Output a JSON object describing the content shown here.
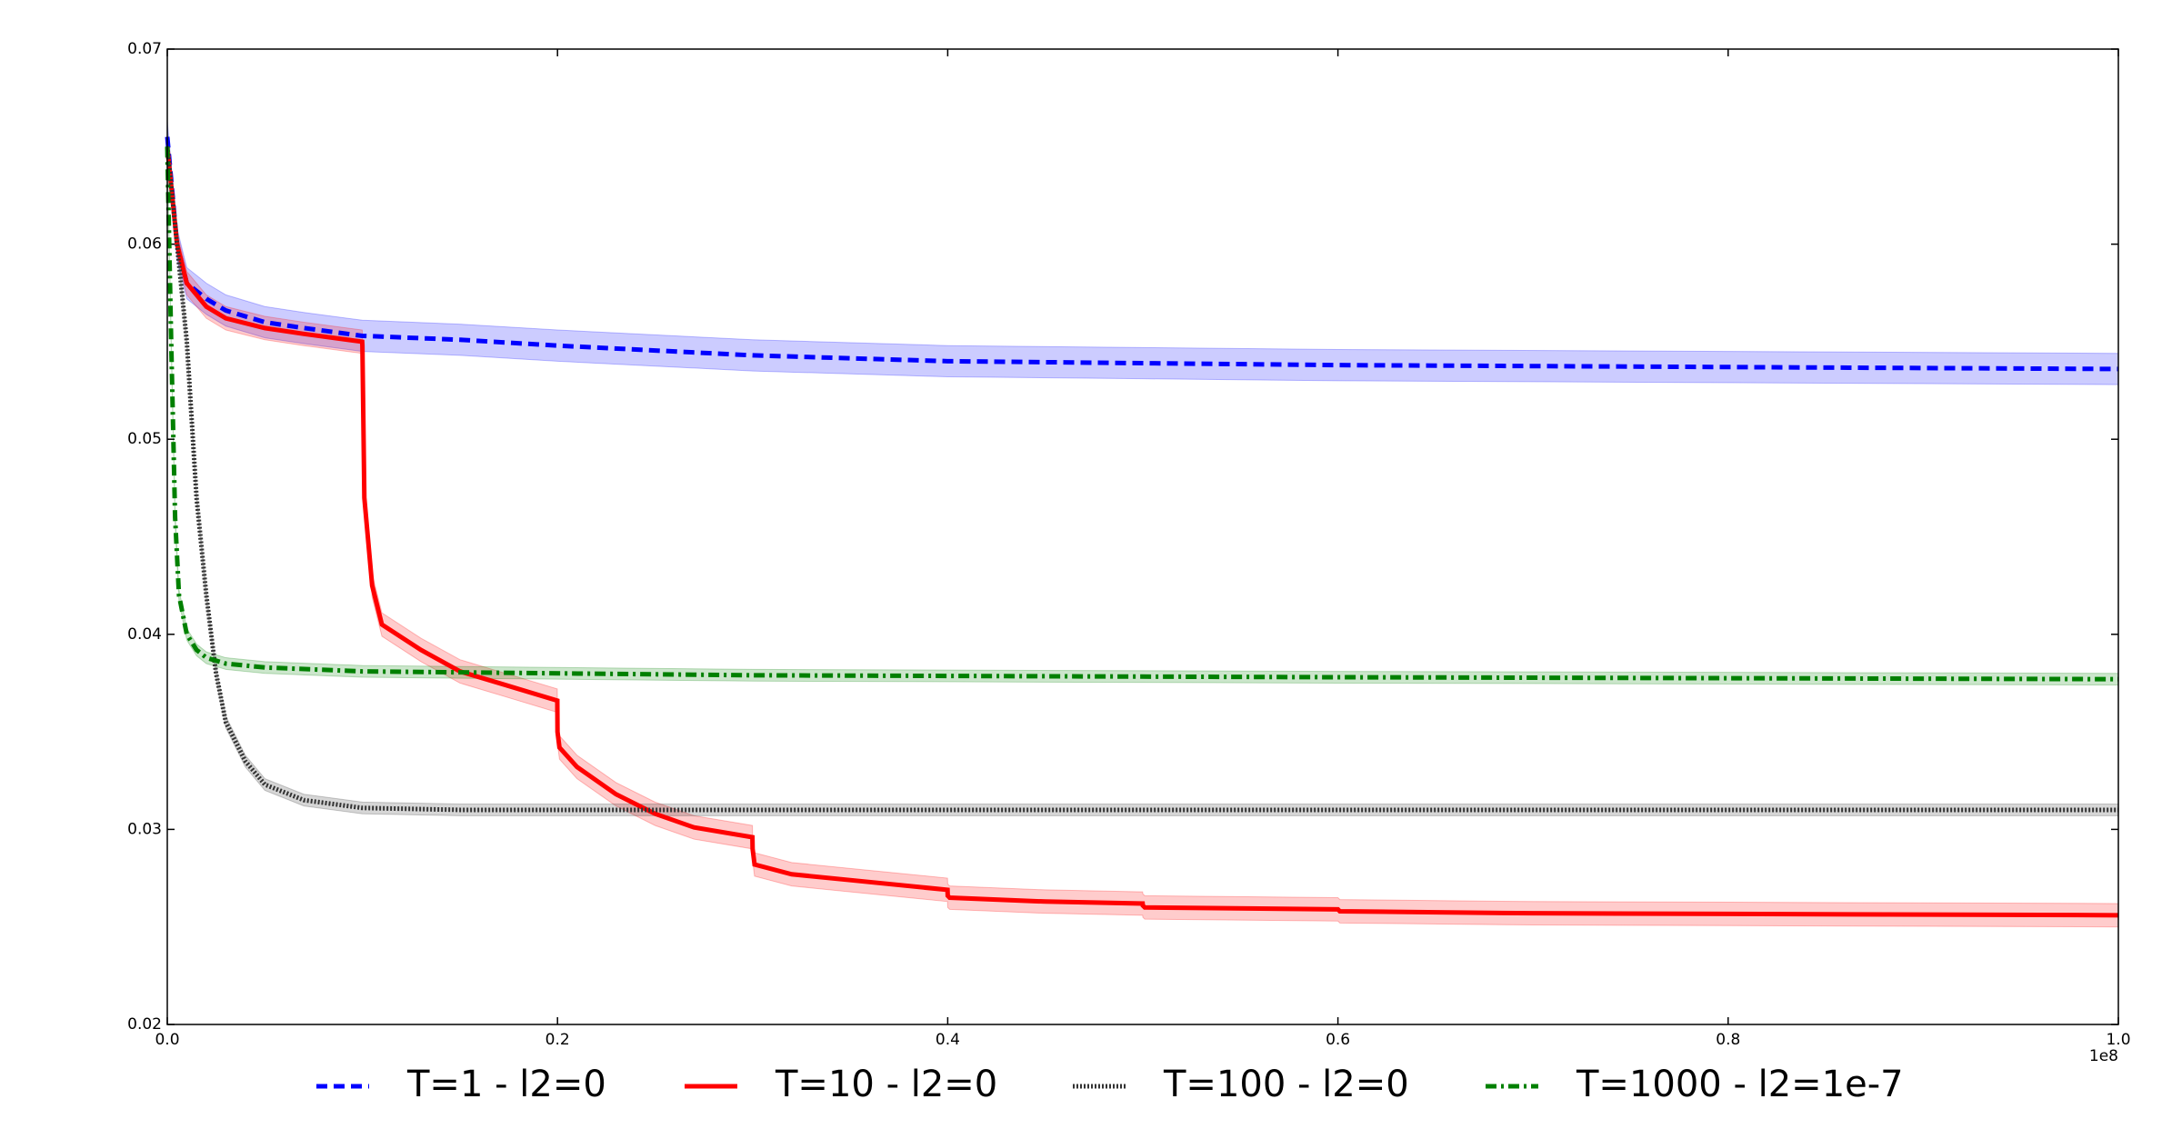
{
  "chart_data": {
    "type": "line",
    "x_offset_label": "1e8",
    "xlim": [
      0,
      1.0
    ],
    "xticks": [
      {
        "value": 0,
        "label": "0.0"
      },
      0.2,
      0.4,
      0.6,
      0.8,
      {
        "value": 1,
        "label": "1.0"
      }
    ],
    "ylim": [
      0.02,
      0.07
    ],
    "yticks": [
      0.02,
      0.03,
      0.04,
      0.05,
      0.06,
      0.07
    ],
    "grid": false,
    "legend": "bottom",
    "series": [
      {
        "name": "T=1 - l2=0",
        "color": "#0000ff",
        "dash": "dashed",
        "spread": 0.0008,
        "x": [
          0,
          0.005,
          0.01,
          0.02,
          0.03,
          0.05,
          0.07,
          0.1,
          0.15,
          0.2,
          0.3,
          0.4,
          0.5,
          0.6,
          0.8,
          1.0
        ],
        "values": [
          0.0655,
          0.06,
          0.058,
          0.0572,
          0.0566,
          0.056,
          0.0557,
          0.0553,
          0.0551,
          0.0548,
          0.0543,
          0.054,
          0.0539,
          0.0538,
          0.0537,
          0.0536
        ]
      },
      {
        "name": "T=10 - l2=0",
        "color": "#ff0000",
        "dash": "solid",
        "spread": 0.0006,
        "x": [
          0,
          0.005,
          0.01,
          0.02,
          0.03,
          0.05,
          0.07,
          0.0999,
          0.1,
          0.101,
          0.105,
          0.11,
          0.13,
          0.15,
          0.17,
          0.1999,
          0.2,
          0.201,
          0.21,
          0.23,
          0.25,
          0.27,
          0.2999,
          0.3,
          0.301,
          0.32,
          0.35,
          0.3999,
          0.4,
          0.401,
          0.45,
          0.4999,
          0.5,
          0.501,
          0.6,
          0.601,
          0.7,
          0.701,
          1.0
        ],
        "values": [
          0.065,
          0.06,
          0.058,
          0.0568,
          0.0562,
          0.0557,
          0.0554,
          0.055,
          0.0548,
          0.047,
          0.0425,
          0.0405,
          0.0392,
          0.0381,
          0.0375,
          0.0366,
          0.035,
          0.0342,
          0.0332,
          0.0318,
          0.0308,
          0.0301,
          0.0296,
          0.029,
          0.0282,
          0.0277,
          0.0274,
          0.0269,
          0.0266,
          0.0265,
          0.0263,
          0.0262,
          0.0261,
          0.026,
          0.0259,
          0.0258,
          0.0257,
          0.0257,
          0.0256
        ]
      },
      {
        "name": "T=100 - l2=0",
        "color": "#333333",
        "dash": "dotted",
        "spread": 0.0003,
        "x": [
          0,
          0.005,
          0.01,
          0.015,
          0.02,
          0.025,
          0.03,
          0.04,
          0.05,
          0.07,
          0.1,
          0.15,
          0.2,
          0.4,
          1.0
        ],
        "values": [
          0.065,
          0.06,
          0.055,
          0.047,
          0.042,
          0.038,
          0.0355,
          0.0335,
          0.0323,
          0.0315,
          0.0311,
          0.031,
          0.031,
          0.031,
          0.031
        ]
      },
      {
        "name": "T=1000 - l2=1e-7",
        "color": "#008000",
        "dash": "dashdot",
        "spread": 0.0003,
        "x": [
          0,
          0.002,
          0.004,
          0.006,
          0.01,
          0.015,
          0.02,
          0.03,
          0.05,
          0.1,
          0.3,
          0.6,
          1.0
        ],
        "values": [
          0.065,
          0.055,
          0.046,
          0.042,
          0.04,
          0.0392,
          0.0388,
          0.0385,
          0.0383,
          0.0381,
          0.0379,
          0.0378,
          0.0377
        ]
      }
    ]
  }
}
